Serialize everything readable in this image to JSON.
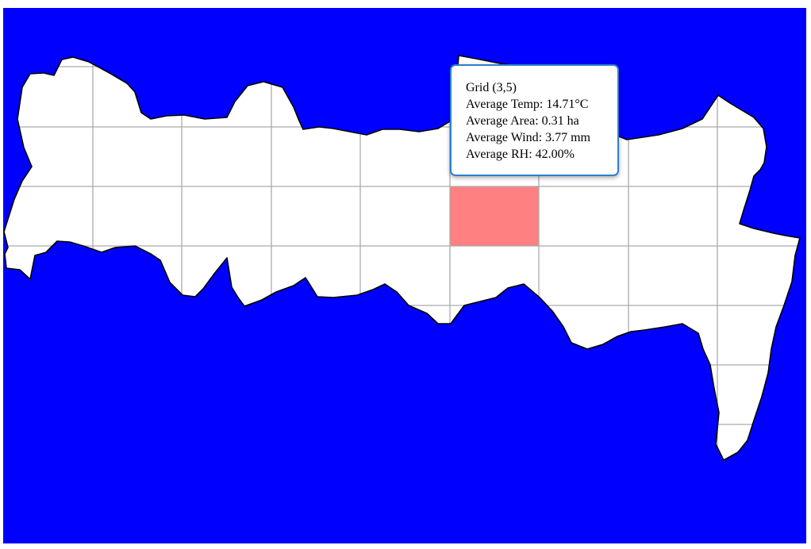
{
  "map": {
    "water_color": "#0000ff",
    "land_color": "#ffffff",
    "coast_color": "#000000",
    "grid_color": "#aaaaaa",
    "highlight_color": "#ff8080",
    "selected_cell": {
      "row": 3,
      "col": 5
    }
  },
  "tooltip": {
    "border_color": "#2f7fd1",
    "grid_line": "Grid (3,5)",
    "temp_line": "Average Temp: 14.71°C",
    "area_line": "Average Area: 0.31 ha",
    "wind_line": "Average Wind: 3.77 mm",
    "rh_line": "Average RH: 42.00%"
  }
}
